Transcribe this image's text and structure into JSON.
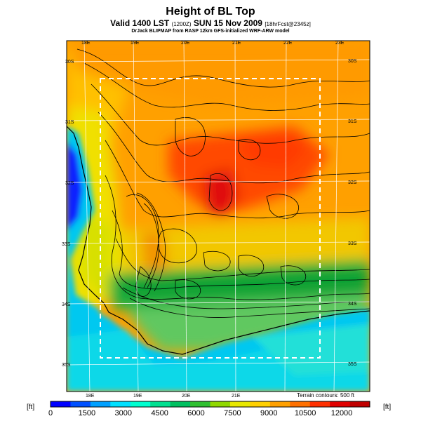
{
  "title": "Height of BL Top",
  "subtitle_main": "Valid 1400 LST",
  "subtitle_code": "(1200Z)",
  "subtitle_date": "SUN 15 Nov 2009",
  "subtitle_fcst": "[18hrFcst@2345z]",
  "credit": "DrJack BLIPMAP from RASP 12km GFS-initialized WRF-ARW model",
  "terrain_note": "Terrain contours: 500 ft",
  "unit_left": "[ft]",
  "unit_right": "[ft]",
  "lon_labels_top": [
    "18E",
    "19E",
    "20E",
    "21E",
    "22E",
    "23E"
  ],
  "lon_labels_bottom": [
    "18E",
    "19E",
    "20E",
    "21E"
  ],
  "lat_labels_left": [
    "30S",
    "31S",
    "32S",
    "33S",
    "34S",
    "35S"
  ],
  "lat_labels_right": [
    "30S",
    "31S",
    "32S",
    "33S",
    "34S",
    "35S"
  ],
  "colorbar": {
    "ticks": [
      "0",
      "1500",
      "3000",
      "4500",
      "6000",
      "7500",
      "9000",
      "10500",
      "12000"
    ],
    "colors": [
      "#0000ff",
      "#0050ff",
      "#00a0ff",
      "#00e0ff",
      "#00ffd0",
      "#00e090",
      "#00c060",
      "#30c030",
      "#90d800",
      "#e8e800",
      "#ffd000",
      "#ffa000",
      "#ff7000",
      "#ff3000",
      "#e00000",
      "#c00000"
    ]
  },
  "map_colors": {
    "ocean_deep": "#1010ff",
    "ocean": "#10c8ff",
    "sea": "#00d8e0",
    "green": "#10b040",
    "yellow": "#f0e000",
    "orange": "#ffa000",
    "red": "#ff3000",
    "darkred": "#d00000"
  }
}
